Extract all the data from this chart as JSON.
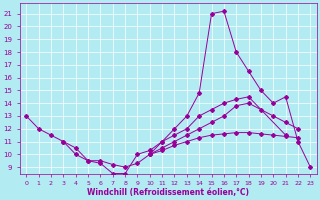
{
  "bg_color": "#b2ebf2",
  "grid_color": "#ffffff",
  "line_color": "#990099",
  "xlabel": "Windchill (Refroidissement éolien,°C)",
  "xlabel_color": "#990099",
  "tick_color": "#990099",
  "xlim": [
    -0.5,
    23.5
  ],
  "ylim": [
    8.5,
    21.8
  ],
  "yticks": [
    9,
    10,
    11,
    12,
    13,
    14,
    15,
    16,
    17,
    18,
    19,
    20,
    21
  ],
  "xticks": [
    0,
    1,
    2,
    3,
    4,
    5,
    6,
    7,
    8,
    9,
    10,
    11,
    12,
    13,
    14,
    15,
    16,
    17,
    18,
    19,
    20,
    21,
    22,
    23
  ],
  "lw": 0.7,
  "ms": 2.0,
  "line1_x": [
    0,
    1,
    2,
    3,
    4,
    5,
    6,
    7,
    8,
    9,
    10,
    11,
    12,
    13,
    14,
    15,
    16,
    17,
    18,
    19,
    20,
    21,
    22,
    23
  ],
  "line1_y": [
    13,
    12,
    11.5,
    11,
    10,
    9.5,
    9.3,
    8.5,
    8.5,
    10,
    10.3,
    11,
    12,
    13,
    14.8,
    21,
    21.2,
    18,
    16.5,
    15,
    14,
    14.5,
    11,
    9
  ],
  "line2_x": [
    3,
    4,
    5,
    6,
    7,
    8,
    9,
    10,
    11,
    12,
    13,
    14,
    15,
    16,
    17,
    18,
    21
  ],
  "line2_y": [
    11,
    10.5,
    9.5,
    9.5,
    9.2,
    9.0,
    9.3,
    10,
    11,
    11.5,
    12,
    13,
    13.5,
    14,
    14.3,
    14.5,
    11.5
  ],
  "line3_x": [
    10,
    11,
    12,
    13,
    14,
    15,
    16,
    17,
    18,
    19,
    20,
    21,
    22
  ],
  "line3_y": [
    10,
    10.5,
    11,
    11.5,
    12,
    12.5,
    13,
    13.8,
    14,
    13.5,
    13,
    12.5,
    12
  ],
  "line4_x": [
    10,
    11,
    12,
    13,
    14,
    15,
    16,
    17,
    18,
    19,
    20,
    21,
    22
  ],
  "line4_y": [
    10,
    10.3,
    10.7,
    11,
    11.3,
    11.5,
    11.6,
    11.7,
    11.7,
    11.6,
    11.5,
    11.4,
    11.3
  ]
}
